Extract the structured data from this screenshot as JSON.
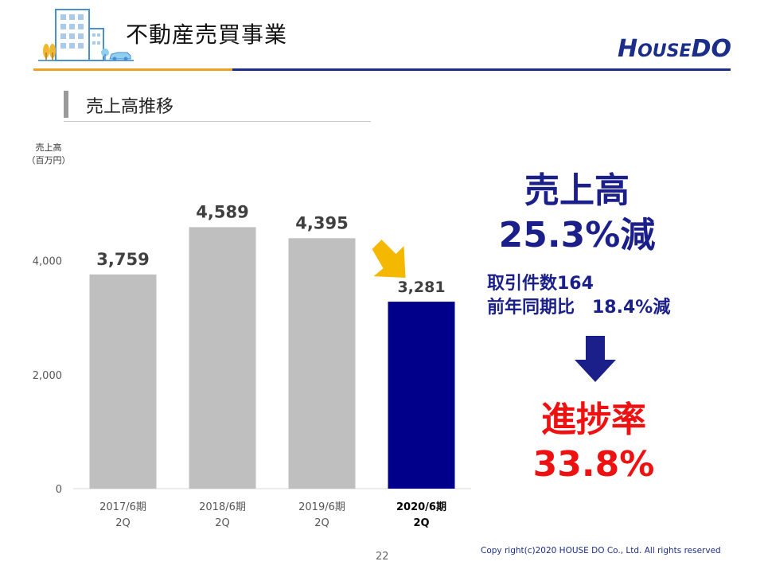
{
  "page": {
    "title": "不動産売買事業",
    "section_title": "売上高推移",
    "page_number": "22",
    "copyright": "Copy right(c)2020 HOUSE DO Co., Ltd. All rights reserved"
  },
  "logo": {
    "part1": "H",
    "part2": "OUSE",
    "part3": "D",
    "part4": "O"
  },
  "chart_data": {
    "type": "bar",
    "ylabel_line1": "売上高",
    "ylabel_line2": "（百万円）",
    "ylim": [
      0,
      5000
    ],
    "yticks": [
      0,
      2000,
      4000
    ],
    "ytick_labels": [
      "0",
      "2,000",
      "4,000"
    ],
    "categories": [
      [
        "2017/6期",
        "2Q"
      ],
      [
        "2018/6期",
        "2Q"
      ],
      [
        "2019/6期",
        "2Q"
      ],
      [
        "2020/6期",
        "2Q"
      ]
    ],
    "values": [
      3759,
      4589,
      4395,
      3281
    ],
    "value_labels": [
      "3,759",
      "4,589",
      "4,395",
      "3,281"
    ],
    "bar_colors": [
      "#bfbfbf",
      "#bfbfbf",
      "#bfbfbf",
      "#00008b"
    ],
    "highlight_index": 3,
    "grid": false
  },
  "callouts": {
    "main_line1": "売上高",
    "main_line2": "25.3%減",
    "sub_line1": "取引件数164",
    "sub_line2": "前年同期比　18.4%減",
    "red_line1": "進捗率",
    "red_line2": "33.8%"
  },
  "colors": {
    "navy": "#1a1f8a",
    "red": "#ee1111",
    "orange": "#f0a020",
    "bar_gray": "#bfbfbf",
    "bar_highlight": "#00008b"
  }
}
